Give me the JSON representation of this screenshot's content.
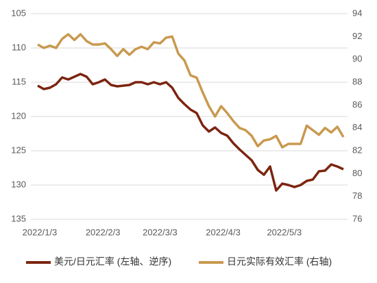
{
  "chart_data": {
    "type": "line",
    "x": [
      "2022/1/2",
      "2022/1/5",
      "2022/1/8",
      "2022/1/11",
      "2022/1/14",
      "2022/1/17",
      "2022/1/20",
      "2022/1/23",
      "2022/1/26",
      "2022/1/29",
      "2022/2/1",
      "2022/2/4",
      "2022/2/7",
      "2022/2/10",
      "2022/2/13",
      "2022/2/16",
      "2022/2/19",
      "2022/2/22",
      "2022/2/25",
      "2022/2/28",
      "2022/3/3",
      "2022/3/6",
      "2022/3/9",
      "2022/3/12",
      "2022/3/15",
      "2022/3/18",
      "2022/3/21",
      "2022/3/24",
      "2022/3/27",
      "2022/3/30",
      "2022/4/2",
      "2022/4/5",
      "2022/4/8",
      "2022/4/11",
      "2022/4/14",
      "2022/4/17",
      "2022/4/20",
      "2022/4/23",
      "2022/4/26",
      "2022/4/29",
      "2022/5/2",
      "2022/5/5",
      "2022/5/8",
      "2022/5/11",
      "2022/5/14",
      "2022/5/17",
      "2022/5/20",
      "2022/5/23",
      "2022/5/26",
      "2022/5/29",
      "2022/6/1"
    ],
    "series": [
      {
        "name": "美元/日元汇率 (左轴、逆序)",
        "color": "#7b2410",
        "values": [
          115.5,
          116.0,
          115.8,
          115.3,
          114.3,
          114.6,
          114.2,
          113.8,
          114.2,
          115.3,
          115.0,
          114.6,
          115.4,
          115.6,
          115.5,
          115.4,
          115.0,
          115.0,
          115.3,
          115.0,
          115.3,
          115.0,
          115.8,
          117.3,
          118.2,
          119.0,
          119.5,
          121.3,
          122.2,
          121.6,
          122.4,
          122.8,
          123.9,
          124.8,
          125.6,
          126.4,
          127.8,
          128.5,
          127.3,
          130.8,
          129.8,
          130.0,
          130.3,
          130.0,
          129.4,
          129.2,
          128.0,
          127.9,
          127.0,
          127.3,
          127.7
        ]
      },
      {
        "name": "日元实际有效汇率 (右轴)",
        "color": "#c9994f",
        "axis": "y2",
        "values": [
          91.3,
          91.0,
          91.2,
          91.0,
          91.8,
          92.2,
          91.7,
          92.2,
          91.6,
          91.3,
          91.3,
          91.4,
          90.9,
          90.3,
          90.9,
          90.4,
          90.9,
          91.1,
          90.9,
          91.5,
          91.4,
          91.9,
          92.0,
          90.5,
          89.9,
          88.6,
          88.4,
          87.1,
          85.9,
          85.0,
          85.9,
          85.3,
          84.6,
          84.0,
          83.8,
          83.3,
          82.4,
          82.9,
          83.0,
          83.3,
          82.3,
          82.6,
          82.6,
          82.6,
          84.2,
          83.8,
          83.4,
          84.0,
          83.6,
          84.1,
          83.2
        ]
      }
    ],
    "xlim": [
      "2022/1/2",
      "2022/6/1"
    ],
    "xticks": [
      "2022/1/3",
      "2022/2/3",
      "2022/3/3",
      "2022/4/3",
      "2022/5/3"
    ],
    "ylim": [
      135,
      105
    ],
    "yticks": [
      105,
      110,
      115,
      120,
      125,
      130,
      135
    ],
    "y2lim": [
      76,
      94
    ],
    "y2ticks": [
      76,
      78,
      80,
      82,
      84,
      86,
      88,
      90,
      92,
      94
    ],
    "grid": true,
    "legend": "bottom"
  }
}
